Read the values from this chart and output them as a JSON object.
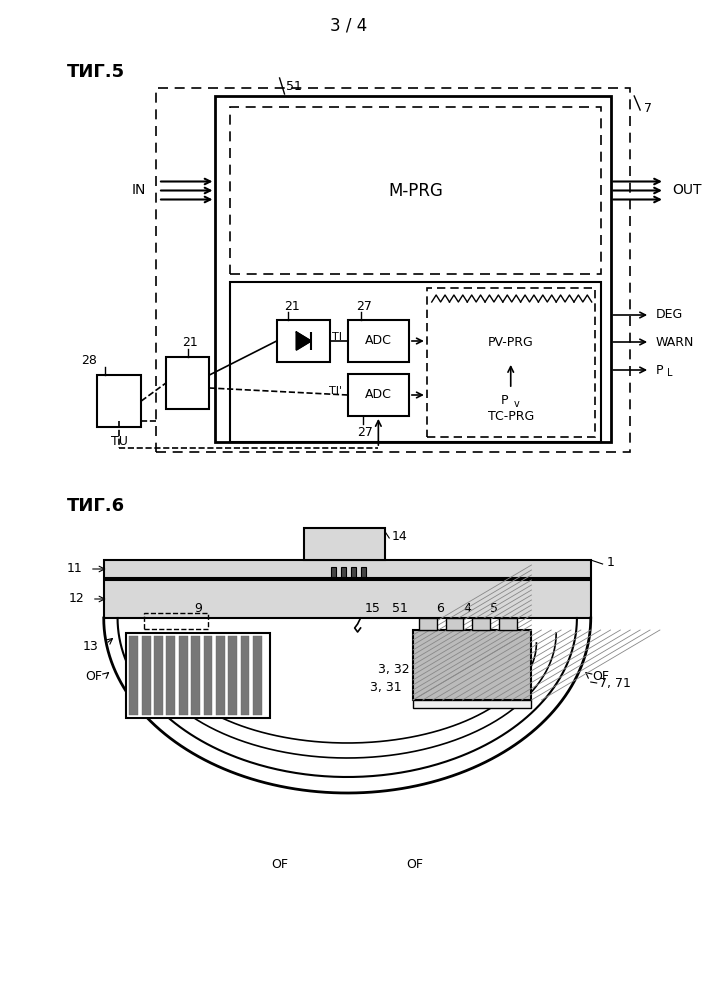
{
  "page_label": "3 / 4",
  "fig5_label": "ΤИГ.5",
  "fig6_label": "ΤИГ.6",
  "bg_color": "#ffffff",
  "lc": "#000000"
}
